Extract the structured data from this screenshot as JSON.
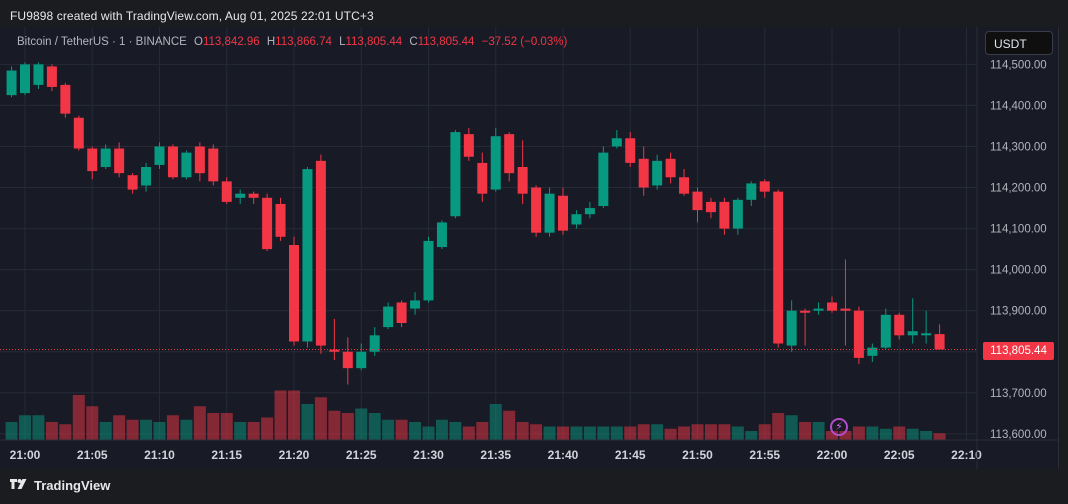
{
  "header": {
    "caption": "FU9898 created with TradingView.com, Aug 01, 2025 22:01 UTC+3"
  },
  "legend": {
    "symbol": "Bitcoin / TetherUS · 1 · BINANCE",
    "o_label": "O",
    "o": "113,842.96",
    "h_label": "H",
    "h": "113,866.74",
    "l_label": "L",
    "l": "113,805.44",
    "c_label": "C",
    "c": "113,805.44",
    "change": "−37.52 (−0.03%)"
  },
  "currency_button": "USDT",
  "last_price_label": "113,805.44",
  "footer": {
    "brand": "TradingView"
  },
  "colors": {
    "up": "#089981",
    "down": "#f23645",
    "background": "#181a25",
    "grid": "#262a36"
  },
  "chart_data": {
    "type": "candlestick",
    "symbol": "Bitcoin / TetherUS",
    "interval": "1 minute",
    "exchange": "BINANCE",
    "y_ticks": [
      "114,500.00",
      "114,400.00",
      "114,300.00",
      "114,200.00",
      "114,100.00",
      "114,000.00",
      "113,900.00",
      "113,800.00",
      "113,700.00",
      "113,600.00"
    ],
    "y_tick_values": [
      114500,
      114400,
      114300,
      114200,
      114100,
      114000,
      113900,
      113800,
      113700,
      113600
    ],
    "ylim": [
      113585,
      114535
    ],
    "x_ticks": [
      "21:00",
      "21:05",
      "21:10",
      "21:15",
      "21:20",
      "21:25",
      "21:30",
      "21:35",
      "21:40",
      "21:45",
      "21:50",
      "21:55",
      "22:00",
      "22:05",
      "22:10"
    ],
    "x_tick_minutes": [
      0,
      5,
      10,
      15,
      20,
      25,
      30,
      35,
      40,
      45,
      50,
      55,
      60,
      65,
      70
    ],
    "last_price": 113805.44,
    "candles_minute_ohlcv": [
      [
        -1,
        114425,
        114495,
        114420,
        114485,
        40
      ],
      [
        0,
        114430,
        114505,
        114425,
        114500,
        55
      ],
      [
        1,
        114450,
        114505,
        114440,
        114500,
        55
      ],
      [
        2,
        114495,
        114500,
        114435,
        114445,
        40
      ],
      [
        3,
        114450,
        114455,
        114370,
        114380,
        35
      ],
      [
        4,
        114370,
        114375,
        114290,
        114295,
        100
      ],
      [
        5,
        114295,
        114300,
        114220,
        114240,
        75
      ],
      [
        6,
        114250,
        114305,
        114245,
        114295,
        40
      ],
      [
        7,
        114295,
        114310,
        114225,
        114235,
        55
      ],
      [
        8,
        114230,
        114235,
        114185,
        114195,
        45
      ],
      [
        9,
        114205,
        114260,
        114190,
        114250,
        45
      ],
      [
        10,
        114255,
        114310,
        114245,
        114300,
        40
      ],
      [
        11,
        114300,
        114305,
        114220,
        114225,
        55
      ],
      [
        12,
        114225,
        114290,
        114220,
        114285,
        45
      ],
      [
        13,
        114300,
        114310,
        114215,
        114235,
        75
      ],
      [
        14,
        114295,
        114305,
        114205,
        114215,
        60
      ],
      [
        15,
        114215,
        114225,
        114160,
        114165,
        60
      ],
      [
        16,
        114175,
        114195,
        114160,
        114185,
        40
      ],
      [
        17,
        114185,
        114190,
        114160,
        114175,
        40
      ],
      [
        18,
        114175,
        114185,
        114045,
        114050,
        50
      ],
      [
        19,
        114160,
        114175,
        114070,
        114080,
        110
      ],
      [
        20,
        114060,
        114080,
        113815,
        113825,
        110
      ],
      [
        21,
        113825,
        114250,
        113810,
        114245,
        80
      ],
      [
        22,
        114265,
        114280,
        113795,
        113815,
        95
      ],
      [
        23,
        113805,
        113880,
        113780,
        113800,
        65
      ],
      [
        24,
        113800,
        113835,
        113720,
        113760,
        60
      ],
      [
        25,
        113760,
        113820,
        113755,
        113800,
        70
      ],
      [
        26,
        113800,
        113860,
        113790,
        113840,
        60
      ],
      [
        27,
        113860,
        113920,
        113855,
        113910,
        45
      ],
      [
        28,
        113920,
        113925,
        113860,
        113870,
        45
      ],
      [
        29,
        113905,
        113945,
        113890,
        113925,
        40
      ],
      [
        30,
        113925,
        114080,
        113920,
        114070,
        30
      ],
      [
        31,
        114055,
        114120,
        114050,
        114115,
        45
      ],
      [
        32,
        114130,
        114340,
        114125,
        114335,
        40
      ],
      [
        33,
        114330,
        114345,
        114265,
        114275,
        30
      ],
      [
        34,
        114260,
        114285,
        114165,
        114185,
        40
      ],
      [
        35,
        114195,
        114345,
        114190,
        114325,
        80
      ],
      [
        36,
        114330,
        114335,
        114215,
        114235,
        65
      ],
      [
        37,
        114250,
        114315,
        114160,
        114185,
        40
      ],
      [
        38,
        114200,
        114205,
        114080,
        114090,
        35
      ],
      [
        39,
        114090,
        114200,
        114080,
        114185,
        30
      ],
      [
        40,
        114180,
        114200,
        114085,
        114095,
        30
      ],
      [
        41,
        114110,
        114145,
        114100,
        114135,
        30
      ],
      [
        42,
        114135,
        114165,
        114125,
        114150,
        30
      ],
      [
        43,
        114155,
        114300,
        114150,
        114285,
        30
      ],
      [
        44,
        114300,
        114340,
        114295,
        114320,
        30
      ],
      [
        45,
        114320,
        114335,
        114250,
        114260,
        30
      ],
      [
        46,
        114270,
        114300,
        114180,
        114200,
        35
      ],
      [
        47,
        114205,
        114280,
        114195,
        114265,
        35
      ],
      [
        48,
        114270,
        114285,
        114210,
        114225,
        25
      ],
      [
        49,
        114225,
        114245,
        114180,
        114185,
        30
      ],
      [
        50,
        114190,
        114200,
        114115,
        114145,
        35
      ],
      [
        51,
        114165,
        114175,
        114125,
        114140,
        35
      ],
      [
        52,
        114165,
        114175,
        114085,
        114100,
        35
      ],
      [
        53,
        114100,
        114175,
        114085,
        114170,
        30
      ],
      [
        54,
        114170,
        114215,
        114155,
        114210,
        20
      ],
      [
        55,
        114215,
        114220,
        114175,
        114190,
        35
      ],
      [
        56,
        114190,
        114195,
        113810,
        113820,
        60
      ],
      [
        57,
        113815,
        113925,
        113800,
        113900,
        55
      ],
      [
        58,
        113900,
        113905,
        113815,
        113895,
        40
      ],
      [
        59,
        113900,
        113920,
        113890,
        113905,
        40
      ],
      [
        60,
        113920,
        113935,
        113895,
        113900,
        20
      ],
      [
        61,
        113905,
        114025,
        113815,
        113900,
        20
      ],
      [
        62,
        113900,
        113910,
        113770,
        113785,
        30
      ],
      [
        63,
        113790,
        113820,
        113775,
        113810,
        30
      ],
      [
        64,
        113810,
        113905,
        113805,
        113890,
        25
      ],
      [
        65,
        113890,
        113895,
        113830,
        113840,
        30
      ],
      [
        66,
        113840,
        113930,
        113820,
        113850,
        25
      ],
      [
        67,
        113840,
        113900,
        113820,
        113845,
        20
      ],
      [
        68,
        113842.96,
        113866.74,
        113805.44,
        113805.44,
        15
      ]
    ]
  }
}
